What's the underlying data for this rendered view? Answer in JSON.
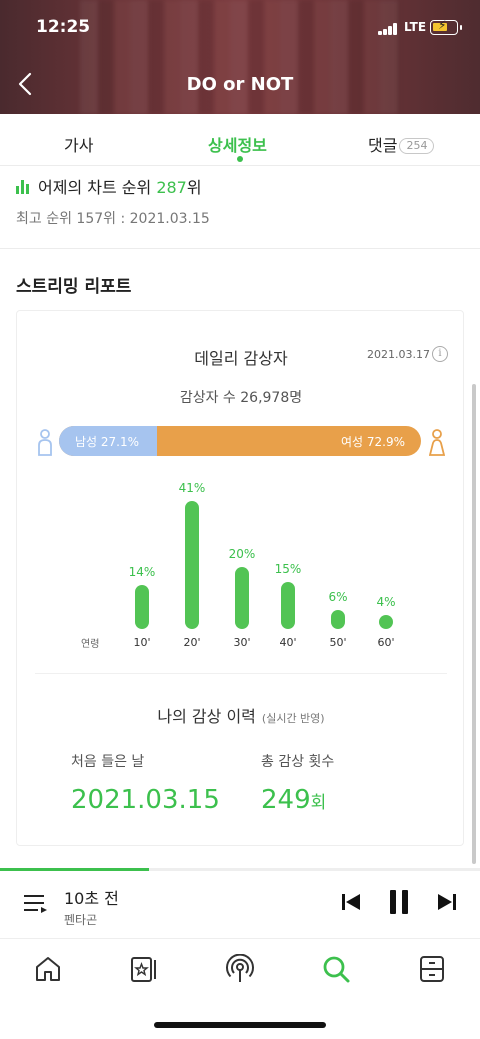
{
  "status_bar": {
    "time": "12:25",
    "network": "LTE"
  },
  "header": {
    "title": "DO or NOT"
  },
  "tabs": [
    {
      "label": "가사",
      "active": false
    },
    {
      "label": "상세정보",
      "active": true
    },
    {
      "label": "댓글",
      "badge": "254",
      "active": false
    }
  ],
  "chart_rank": {
    "prefix": "어제의 차트 순위",
    "rank": "287",
    "suffix": "위",
    "best": "최고 순위 157위 : 2021.03.15"
  },
  "streaming_report": {
    "section_title": "스트리밍 리포트",
    "daily_title": "데일리 감상자",
    "date": "2021.03.17",
    "info_icon": "i",
    "listener_count": "감상자 수 26,978명",
    "gender": {
      "male_label": "남성 27.1%",
      "female_label": "여성 72.9%",
      "male_ratio": 0.271,
      "male_color": "#a6c4ef",
      "female_color": "#e8a04a"
    },
    "age_caption": "연령",
    "age_groups": [
      {
        "label": "10'",
        "pct": 14,
        "pct_label": "14%"
      },
      {
        "label": "20'",
        "pct": 41,
        "pct_label": "41%"
      },
      {
        "label": "30'",
        "pct": 20,
        "pct_label": "20%"
      },
      {
        "label": "40'",
        "pct": 15,
        "pct_label": "15%"
      },
      {
        "label": "50'",
        "pct": 6,
        "pct_label": "6%"
      },
      {
        "label": "60'",
        "pct": 4,
        "pct_label": "4%"
      }
    ],
    "my_history": {
      "title": "나의 감상 이력",
      "subtitle": "(실시간 반영)",
      "first_label": "처음 들은 날",
      "first_value": "2021.03.15",
      "count_label": "총 감상 횟수",
      "count_value": "249",
      "count_unit": "회"
    }
  },
  "player": {
    "song": "10초 전",
    "artist": "펜타곤",
    "progress": 0.31
  },
  "nav": [
    {
      "icon": "home-icon",
      "active": false
    },
    {
      "icon": "card-icon",
      "active": false
    },
    {
      "icon": "radio-icon",
      "active": false
    },
    {
      "icon": "search-icon",
      "active": true
    },
    {
      "icon": "storage-icon",
      "active": false
    }
  ],
  "colors": {
    "accent": "#3cc04d",
    "bar": "#52c454"
  }
}
